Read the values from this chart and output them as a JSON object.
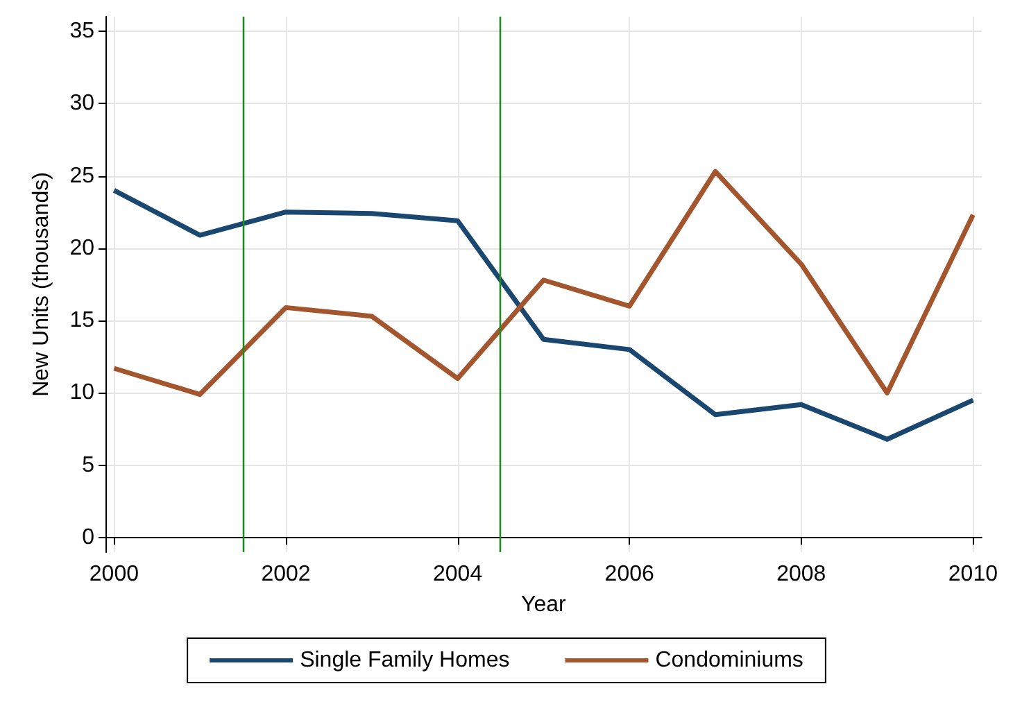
{
  "chart_data": {
    "type": "line",
    "xlabel": "Year",
    "ylabel": "New Units (thousands)",
    "x": [
      2000,
      2001,
      2002,
      2003,
      2004,
      2005,
      2006,
      2007,
      2008,
      2009,
      2010
    ],
    "series": [
      {
        "name": "Single Family Homes",
        "color": "#1a476f",
        "values": [
          24.0,
          20.9,
          22.5,
          22.4,
          21.9,
          13.7,
          13.0,
          8.5,
          9.2,
          6.8,
          9.5
        ]
      },
      {
        "name": "Condominiums",
        "color": "#a3562e",
        "values": [
          11.7,
          9.9,
          15.9,
          15.3,
          11.0,
          17.8,
          16.0,
          25.3,
          18.9,
          10.0,
          22.3
        ]
      }
    ],
    "xlim": [
      1999.9,
      2010.1
    ],
    "xticks": [
      2000,
      2002,
      2004,
      2006,
      2008,
      2010
    ],
    "ylim": [
      -1,
      36
    ],
    "yticks": [
      0,
      5,
      10,
      15,
      20,
      25,
      30,
      35
    ],
    "ref_lines": [
      {
        "axis": "x",
        "value": 2001.5,
        "color": "#1e8c1e"
      },
      {
        "axis": "x",
        "value": 2004.5,
        "color": "#1e8c1e"
      }
    ],
    "grid": true,
    "legend": "bottom",
    "line_style": "solid",
    "marker": "none"
  }
}
